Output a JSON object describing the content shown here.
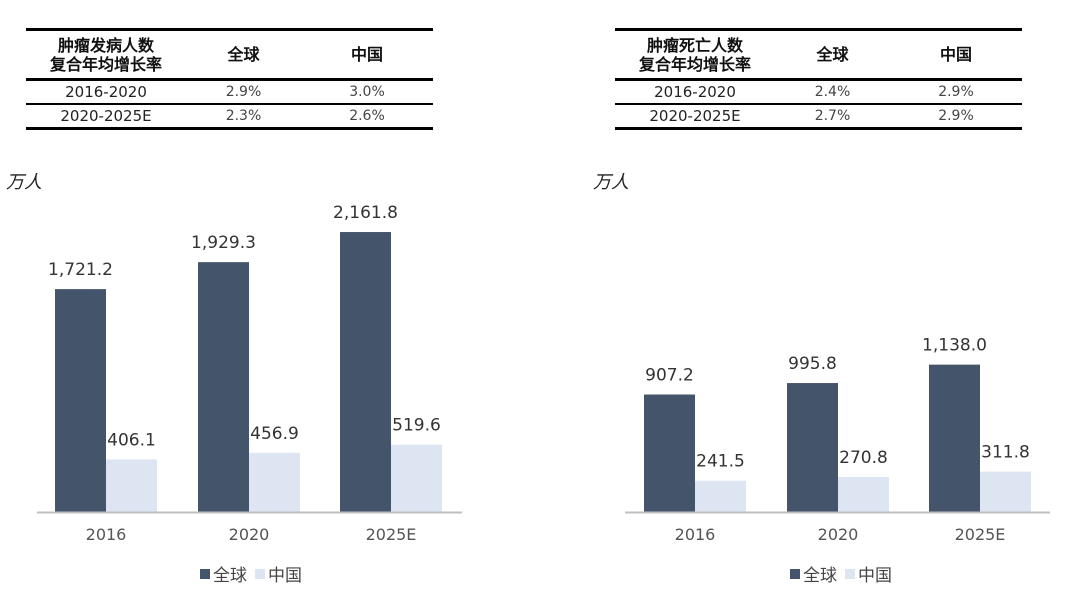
{
  "colors": {
    "global": "#44546A",
    "china": "#DDE4F2",
    "axis": "#BFBFBF"
  },
  "tables": [
    {
      "header_lines": [
        "肿瘤发病人数",
        "复合年均增长率"
      ],
      "col_global": "全球",
      "col_china": "中国",
      "rows": [
        {
          "period": "2016-2020",
          "global": "2.9%",
          "china": "3.0%"
        },
        {
          "period": "2020-2025E",
          "global": "2.3%",
          "china": "2.6%"
        }
      ]
    },
    {
      "header_lines": [
        "肿瘤死亡人数",
        "复合年均增长率"
      ],
      "col_global": "全球",
      "col_china": "中国",
      "rows": [
        {
          "period": "2016-2020",
          "global": "2.4%",
          "china": "2.9%"
        },
        {
          "period": "2020-2025E",
          "global": "2.7%",
          "china": "2.9%"
        }
      ]
    }
  ],
  "chart_data": [
    {
      "type": "bar",
      "unit": "万人",
      "categories": [
        "2016",
        "2020",
        "2025E"
      ],
      "series": [
        {
          "name": "全球",
          "values": [
            1721.2,
            1929.3,
            2161.8
          ],
          "labels": [
            "1,721.2",
            "1,929.3",
            "2,161.8"
          ]
        },
        {
          "name": "中国",
          "values": [
            406.1,
            456.9,
            519.6
          ],
          "labels": [
            "406.1",
            "456.9",
            "519.6"
          ]
        }
      ],
      "legend_position": "bottom-center",
      "grid": false
    },
    {
      "type": "bar",
      "unit": "万人",
      "categories": [
        "2016",
        "2020",
        "2025E"
      ],
      "series": [
        {
          "name": "全球",
          "values": [
            907.2,
            995.8,
            1138.0
          ],
          "labels": [
            "907.2",
            "995.8",
            "1,138.0"
          ]
        },
        {
          "name": "中国",
          "values": [
            241.5,
            270.8,
            311.8
          ],
          "labels": [
            "241.5",
            "270.8",
            "311.8"
          ]
        }
      ],
      "legend_position": "bottom-center",
      "grid": false
    }
  ]
}
